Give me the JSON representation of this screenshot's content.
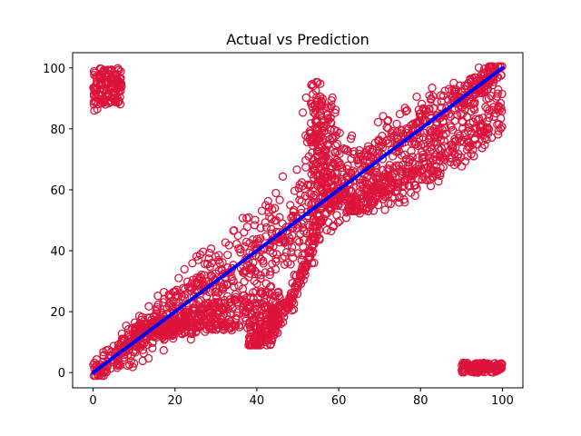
{
  "chart_data": {
    "type": "scatter",
    "title": "Actual vs Prediction",
    "xlabel": "",
    "ylabel": "",
    "xlim": [
      -5,
      105
    ],
    "ylim": [
      -5,
      105
    ],
    "x_ticks": [
      0,
      20,
      40,
      60,
      80,
      100
    ],
    "y_ticks": [
      0,
      20,
      40,
      60,
      80,
      100
    ],
    "x_tick_labels": [
      "0",
      "20",
      "40",
      "60",
      "80",
      "100"
    ],
    "y_tick_labels": [
      "0",
      "20",
      "40",
      "60",
      "80",
      "100"
    ],
    "grid": false,
    "legend": "none",
    "series": [
      {
        "kind": "scatter",
        "marker": "open-circle",
        "color": "#dc143c",
        "density_regions": [
          {
            "region": "main-diagonal-band",
            "x_range": [
              0,
              100
            ],
            "y_spread": 5
          },
          {
            "region": "upper-left-cluster",
            "x_range": [
              0,
              7
            ],
            "y_range": [
              86,
              100
            ]
          },
          {
            "region": "lower-right-cluster",
            "x_range": [
              90,
              100
            ],
            "y_range": [
              0,
              3
            ]
          },
          {
            "region": "lower-wedge",
            "x_range": [
              10,
              55
            ],
            "y_range": [
              9,
              25
            ]
          },
          {
            "region": "upper-spike",
            "x_range": [
              53,
              61
            ],
            "y_range": [
              60,
              97
            ]
          },
          {
            "region": "right-lower-curve",
            "x_range": [
              58,
              100
            ],
            "y_range": [
              53,
              86
            ]
          }
        ]
      },
      {
        "kind": "line",
        "name": "",
        "color": "#0000ff",
        "x": [
          0,
          100
        ],
        "y": [
          0,
          100
        ]
      }
    ]
  }
}
